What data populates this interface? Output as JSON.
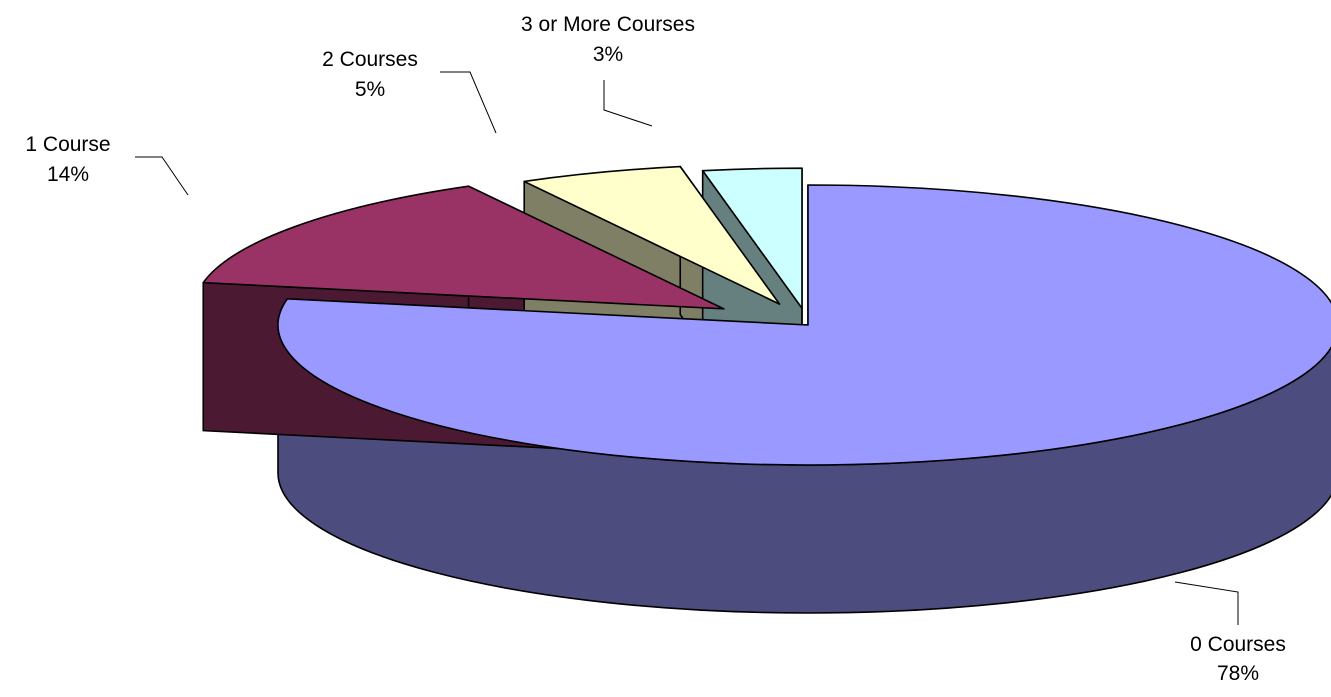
{
  "chart_data": {
    "type": "pie",
    "style": "3d-exploded",
    "title": "",
    "categories": [
      "0 Courses",
      "1  Course",
      "2  Courses",
      "3  or More Courses"
    ],
    "values": [
      78,
      14,
      5,
      3
    ],
    "value_labels": [
      "78%",
      "14%",
      "5%",
      "3%"
    ],
    "unit": "%",
    "colors": {
      "top": [
        "#9999FF",
        "#993366",
        "#FFFFCC",
        "#CCFFFF"
      ],
      "side": [
        "#4C4C7F",
        "#4C1933",
        "#7F7F66",
        "#667F7F"
      ]
    },
    "legend": "none",
    "data_labels": "outside with leader lines"
  }
}
